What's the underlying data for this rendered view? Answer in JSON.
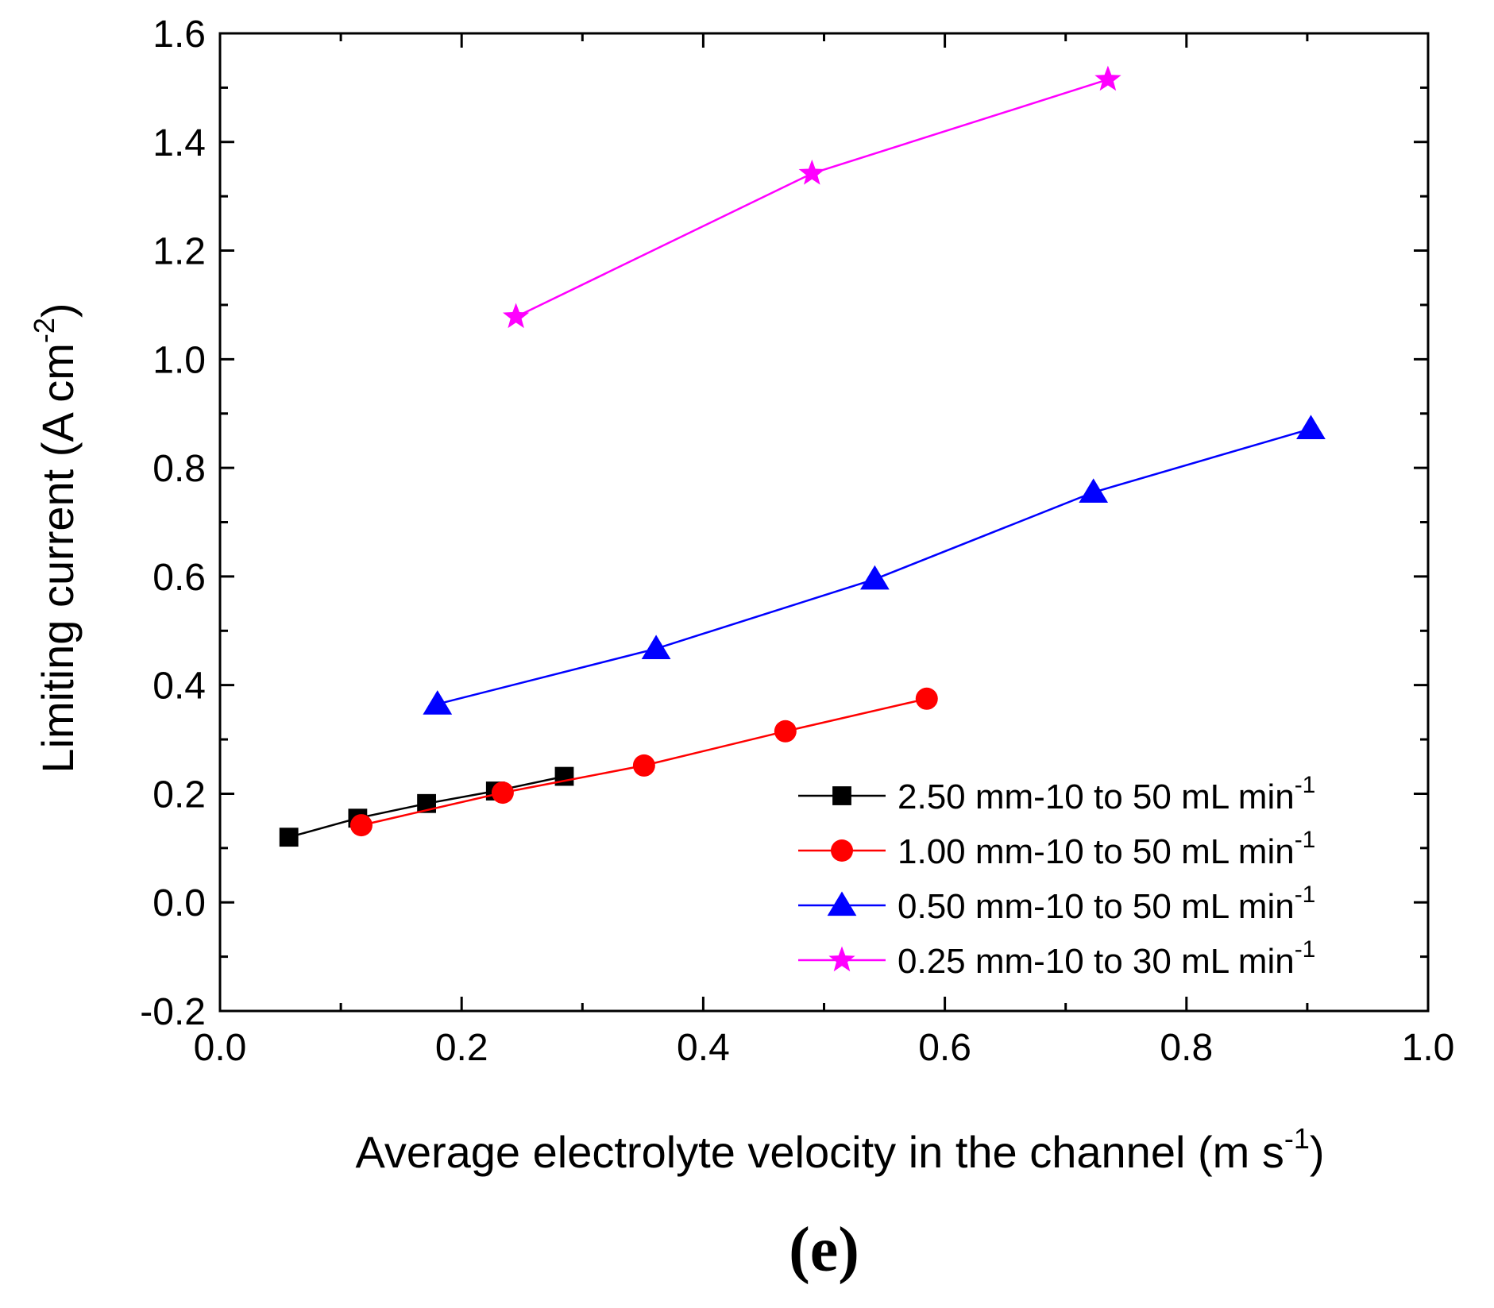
{
  "chart_data": {
    "type": "line",
    "title": "",
    "panel_label": "(e)",
    "xlabel": "Average electrolyte velocity in the channel  (m s",
    "xlabel_sup": "-1",
    "xlabel_end": ")",
    "ylabel": "Limiting current (A cm",
    "ylabel_sup": "-2",
    "ylabel_end": ")",
    "xlim": [
      0.0,
      1.0
    ],
    "ylim": [
      -0.2,
      1.6
    ],
    "xticks": [
      0.0,
      0.2,
      0.4,
      0.6,
      0.8,
      1.0
    ],
    "yticks": [
      -0.2,
      0.0,
      0.2,
      0.4,
      0.6,
      0.8,
      1.0,
      1.2,
      1.4,
      1.6
    ],
    "xtick_labels": [
      "0.0",
      "0.2",
      "0.4",
      "0.6",
      "0.8",
      "1.0"
    ],
    "ytick_labels": [
      "-0.2",
      "0.0",
      "0.2",
      "0.4",
      "0.6",
      "0.8",
      "1.0",
      "1.2",
      "1.4",
      "1.6"
    ],
    "legend_position": "lower-right",
    "series": [
      {
        "name": "2.50 mm-10 to 50 mL min",
        "name_sup": "-1",
        "color": "#000000",
        "marker": "square",
        "x": [
          0.057,
          0.114,
          0.171,
          0.228,
          0.285
        ],
        "y": [
          0.12,
          0.155,
          0.182,
          0.205,
          0.232
        ]
      },
      {
        "name": "1.00 mm-10 to 50 mL min",
        "name_sup": "-1",
        "color": "#ff0000",
        "marker": "circle",
        "x": [
          0.117,
          0.234,
          0.351,
          0.468,
          0.585
        ],
        "y": [
          0.142,
          0.202,
          0.252,
          0.315,
          0.375
        ]
      },
      {
        "name": "0.50 mm-10 to 50 mL min",
        "name_sup": "-1",
        "color": "#0000ff",
        "marker": "triangle",
        "x": [
          0.18,
          0.361,
          0.542,
          0.723,
          0.903
        ],
        "y": [
          0.365,
          0.467,
          0.595,
          0.755,
          0.872
        ]
      },
      {
        "name": "0.25 mm-10 to 30 mL min",
        "name_sup": "-1",
        "color": "#ff00ff",
        "marker": "star",
        "x": [
          0.245,
          0.49,
          0.735
        ],
        "y": [
          1.078,
          1.342,
          1.515
        ]
      }
    ]
  }
}
